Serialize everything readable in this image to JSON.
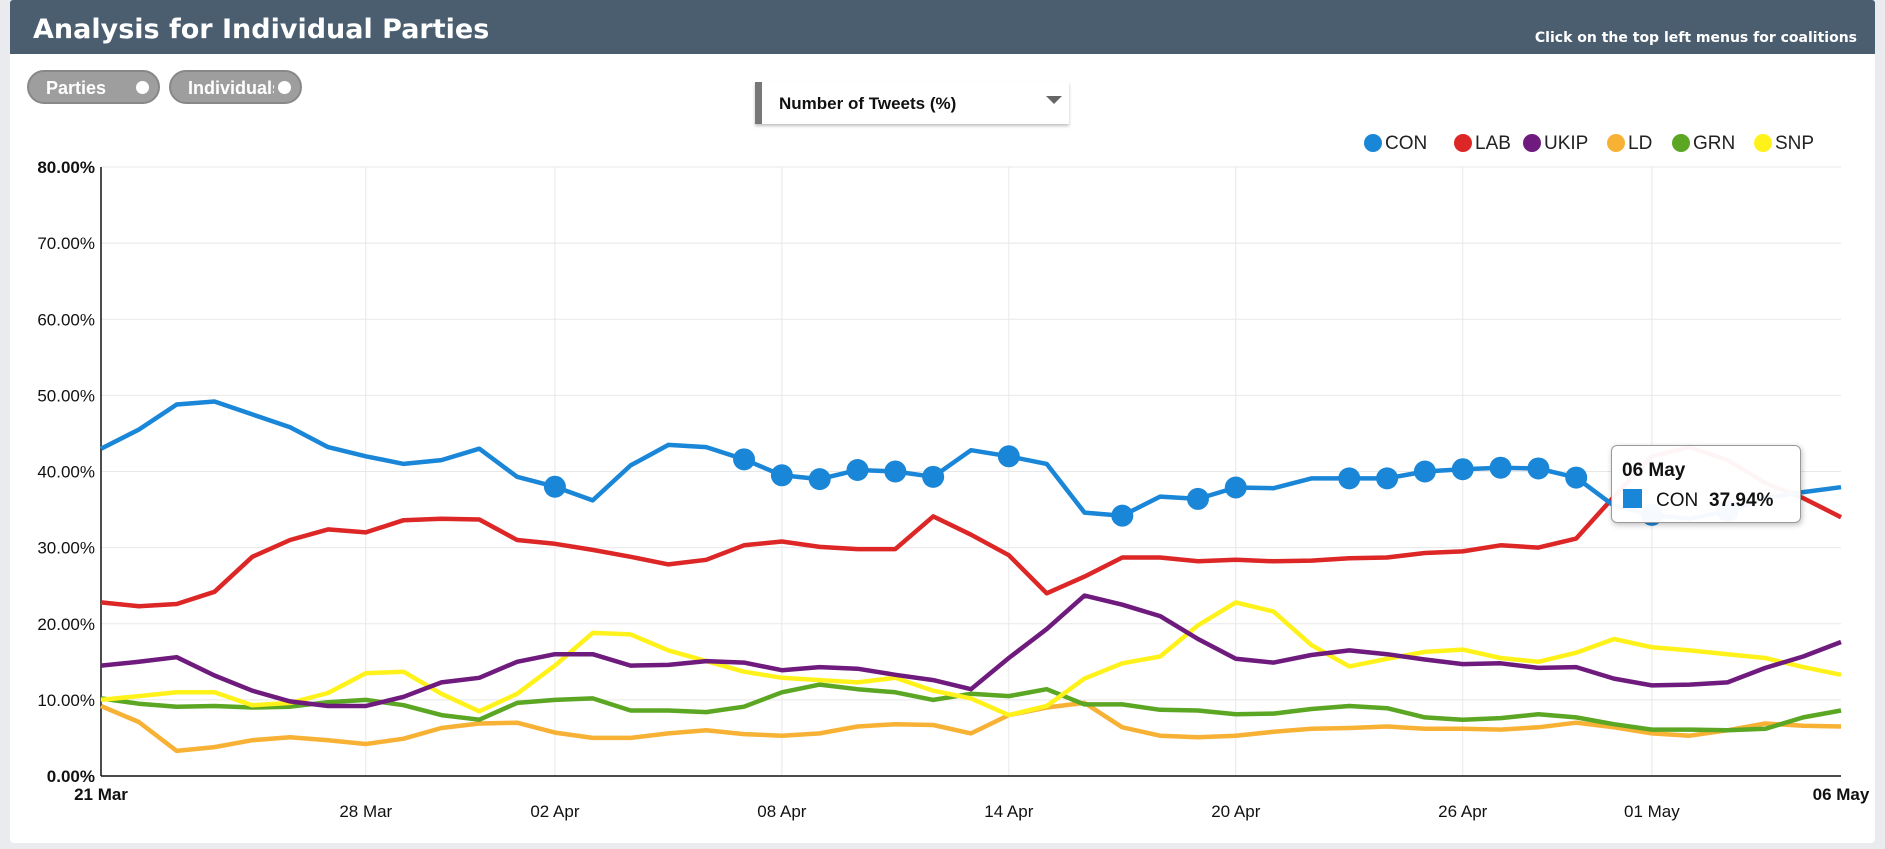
{
  "header": {
    "title": "Analysis for Individual Parties",
    "hint": "Click on the top left menus for coalitions"
  },
  "toggles": [
    {
      "label": "Parties"
    },
    {
      "label": "Individuals"
    }
  ],
  "metric_select": {
    "selected": "Number of Tweets (%)"
  },
  "tooltip": {
    "date": "06 May",
    "series": "CON",
    "value": "37.94%",
    "color": "#1a86d8"
  },
  "chart_data": {
    "type": "line",
    "x_start": "21 Mar",
    "x_end": "06 May",
    "x": [
      "21 Mar",
      "22 Mar",
      "23 Mar",
      "24 Mar",
      "25 Mar",
      "26 Mar",
      "27 Mar",
      "28 Mar",
      "29 Mar",
      "30 Mar",
      "31 Mar",
      "01 Apr",
      "02 Apr",
      "03 Apr",
      "04 Apr",
      "05 Apr",
      "06 Apr",
      "07 Apr",
      "08 Apr",
      "09 Apr",
      "10 Apr",
      "11 Apr",
      "12 Apr",
      "13 Apr",
      "14 Apr",
      "15 Apr",
      "16 Apr",
      "17 Apr",
      "18 Apr",
      "19 Apr",
      "20 Apr",
      "21 Apr",
      "22 Apr",
      "23 Apr",
      "24 Apr",
      "25 Apr",
      "26 Apr",
      "27 Apr",
      "28 Apr",
      "29 Apr",
      "30 Apr",
      "01 May",
      "02 May",
      "03 May",
      "04 May",
      "05 May",
      "06 May"
    ],
    "x_ticks": [
      "21 Mar",
      "28 Mar",
      "02 Apr",
      "08 Apr",
      "14 Apr",
      "20 Apr",
      "26 Apr",
      "01 May",
      "06 May"
    ],
    "y_ticks": [
      "0.00%",
      "10.00%",
      "20.00%",
      "30.00%",
      "40.00%",
      "50.00%",
      "60.00%",
      "70.00%",
      "80.00%"
    ],
    "ylim": [
      0,
      80
    ],
    "grid": true,
    "legend_position": "top-right",
    "series": [
      {
        "name": "CON",
        "color": "#1a86d8",
        "values": [
          43,
          45.5,
          48.8,
          49.2,
          47.5,
          45.8,
          43.2,
          42,
          41,
          41.5,
          43,
          39.3,
          38,
          36.2,
          40.8,
          43.5,
          43.2,
          41.6,
          39.5,
          39,
          40.2,
          40,
          39.3,
          42.8,
          42,
          41,
          34.6,
          34.2,
          36.7,
          36.4,
          37.9,
          37.8,
          39.1,
          39.1,
          39.1,
          40,
          40.3,
          40.5,
          40.4,
          39.2,
          35.5,
          34.3,
          33.8,
          34.8,
          36.5,
          37.3,
          37.94
        ],
        "markers": [
          12,
          17,
          18,
          19,
          20,
          21,
          22,
          24,
          27,
          29,
          30,
          33,
          34,
          35,
          36,
          37,
          38,
          39,
          41,
          43
        ]
      },
      {
        "name": "LAB",
        "color": "#dd2626",
        "values": [
          22.8,
          22.3,
          22.6,
          24.2,
          28.8,
          31,
          32.4,
          32,
          33.6,
          33.8,
          33.7,
          31,
          30.5,
          29.7,
          28.8,
          27.8,
          28.4,
          30.3,
          30.8,
          30.1,
          29.8,
          29.8,
          34.1,
          31.7,
          29,
          24,
          26.2,
          28.7,
          28.7,
          28.2,
          28.4,
          28.2,
          28.3,
          28.6,
          28.7,
          29.3,
          29.5,
          30.3,
          30,
          31.2,
          36.7,
          42,
          43.2,
          41.5,
          38.5,
          36.5,
          34
        ]
      },
      {
        "name": "UKIP",
        "color": "#6f1a7d",
        "values": [
          14.5,
          15,
          15.6,
          13.2,
          11.2,
          9.8,
          9.2,
          9.2,
          10.4,
          12.3,
          12.9,
          15,
          16,
          16,
          14.5,
          14.6,
          15.1,
          14.9,
          13.9,
          14.3,
          14.1,
          13.3,
          12.6,
          11.4,
          15.5,
          19.3,
          23.7,
          22.5,
          21,
          18,
          15.4,
          14.9,
          15.9,
          16.5,
          16,
          15.3,
          14.7,
          14.8,
          14.2,
          14.3,
          12.8,
          11.9,
          12,
          12.3,
          14.2,
          15.7,
          17.6
        ]
      },
      {
        "name": "LD",
        "color": "#f7b135",
        "values": [
          9.2,
          7.1,
          3.3,
          3.8,
          4.7,
          5.1,
          4.7,
          4.2,
          4.9,
          6.3,
          6.9,
          7,
          5.7,
          5,
          5,
          5.6,
          6,
          5.5,
          5.3,
          5.6,
          6.5,
          6.8,
          6.7,
          5.6,
          8,
          9,
          9.6,
          6.4,
          5.3,
          5.1,
          5.3,
          5.8,
          6.2,
          6.3,
          6.5,
          6.2,
          6.2,
          6.1,
          6.4,
          7,
          6.4,
          5.6,
          5.3,
          6,
          6.9,
          6.6,
          6.5
        ]
      },
      {
        "name": "GRN",
        "color": "#5ba623",
        "values": [
          10.2,
          9.5,
          9.1,
          9.2,
          9,
          9.1,
          9.7,
          10,
          9.3,
          8,
          7.4,
          9.6,
          10,
          10.2,
          8.6,
          8.6,
          8.4,
          9.1,
          11,
          12,
          11.4,
          11,
          10,
          10.8,
          10.5,
          11.4,
          9.4,
          9.4,
          8.7,
          8.6,
          8.1,
          8.2,
          8.8,
          9.2,
          8.9,
          7.7,
          7.4,
          7.6,
          8.1,
          7.7,
          6.8,
          6.1,
          6.1,
          6,
          6.2,
          7.7,
          8.6
        ]
      },
      {
        "name": "SNP",
        "color": "#fff21a",
        "values": [
          10,
          10.5,
          11,
          11,
          9.3,
          9.6,
          10.9,
          13.5,
          13.7,
          10.8,
          8.5,
          10.8,
          14.5,
          18.8,
          18.6,
          16.5,
          15.1,
          13.7,
          12.9,
          12.6,
          12.3,
          12.9,
          11.2,
          10.2,
          8,
          9.2,
          12.8,
          14.8,
          15.7,
          19.8,
          22.8,
          21.6,
          17.2,
          14.4,
          15.4,
          16.3,
          16.6,
          15.5,
          15,
          16.2,
          18,
          16.9,
          16.5,
          16,
          15.5,
          14.3,
          13.3
        ]
      }
    ]
  }
}
